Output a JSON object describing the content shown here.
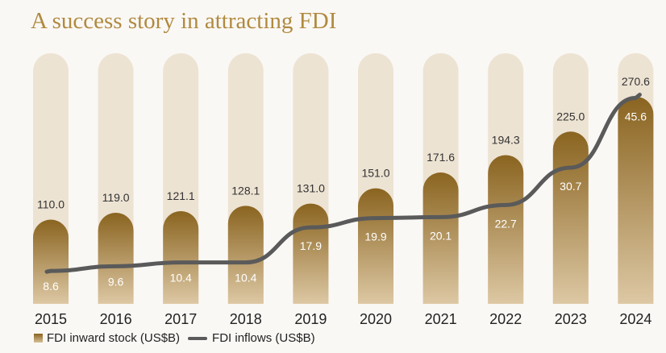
{
  "title": "A success story in attracting FDI",
  "legend": {
    "stock_label": "FDI inward stock (US$B)",
    "inflow_label": "FDI inflows (US$B)"
  },
  "colors": {
    "bar_track": "#ede3d3",
    "bar_top": "#8a6420",
    "bar_bottom": "#ddc8a4",
    "line": "#5a5a5a",
    "title": "#b08a3f"
  },
  "chart_data": {
    "type": "bar",
    "title": "A success story in attracting FDI",
    "categories": [
      "2015",
      "2016",
      "2017",
      "2018",
      "2019",
      "2020",
      "2021",
      "2022",
      "2023",
      "2024"
    ],
    "series": [
      {
        "name": "FDI inward stock (US$B)",
        "type": "bar",
        "values": [
          110.0,
          119.0,
          121.1,
          128.1,
          131.0,
          151.0,
          171.6,
          194.3,
          225.0,
          270.6
        ]
      },
      {
        "name": "FDI inflows (US$B)",
        "type": "line",
        "values": [
          8.6,
          9.6,
          10.4,
          10.4,
          17.9,
          19.9,
          20.1,
          22.7,
          30.7,
          45.6
        ]
      }
    ],
    "legend_position": "bottom-left",
    "grid": false
  }
}
